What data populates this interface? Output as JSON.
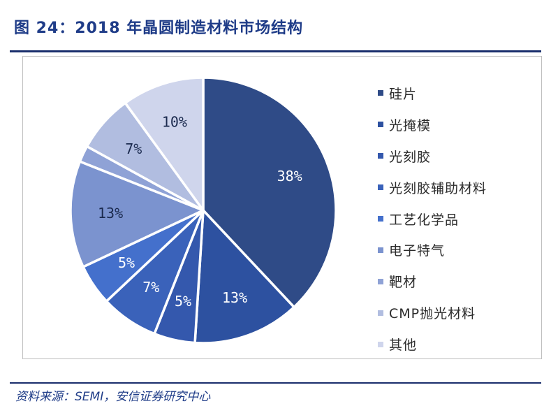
{
  "figure": {
    "title": "图 24：2018 年晶圆制造材料市场结构",
    "source": "资料来源：SEMI，安信证券研究中心"
  },
  "chart_data": {
    "type": "pie",
    "title": "2018 年晶圆制造材料市场结构",
    "unit": "%",
    "legend_position": "right",
    "slices": [
      {
        "label": "硅片",
        "value": 38,
        "display": "38%",
        "color": "#2f4b87"
      },
      {
        "label": "光掩模",
        "value": 13,
        "display": "13%",
        "color": "#2d51a0"
      },
      {
        "label": "光刻胶",
        "value": 5,
        "display": "5%",
        "color": "#3458ad"
      },
      {
        "label": "光刻胶辅助材料",
        "value": 7,
        "display": "7%",
        "color": "#3a62ba"
      },
      {
        "label": "工艺化学品",
        "value": 5,
        "display": "5%",
        "color": "#4470cc"
      },
      {
        "label": "电子特气",
        "value": 13,
        "display": "13%",
        "color": "#7b93cf"
      },
      {
        "label": "靶材",
        "value": 2,
        "display": "",
        "color": "#8fa2d6"
      },
      {
        "label": "CMP抛光材料",
        "value": 7,
        "display": "7%",
        "color": "#b1bde0"
      },
      {
        "label": "其他",
        "value": 10,
        "display": "10%",
        "color": "#cfd5ec"
      }
    ]
  }
}
